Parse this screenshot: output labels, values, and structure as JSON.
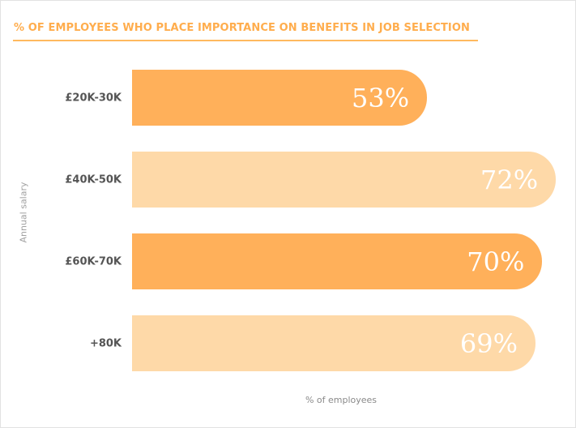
{
  "chart_data": {
    "type": "bar",
    "orientation": "horizontal",
    "title": "% OF EMPLOYEES WHO PLACE IMPORTANCE ON BENEFITS IN JOB SELECTION",
    "xlabel": "% of employees",
    "ylabel": "Annual salary",
    "categories": [
      "£20K-30K",
      "£40K-50K",
      "£60K-70K",
      "+80K"
    ],
    "values": [
      53,
      72,
      70,
      69
    ],
    "data_labels": [
      "53%",
      "72%",
      "70%",
      "69%"
    ],
    "colors": [
      "#ffb05a",
      "#fed9a8",
      "#ffb05a",
      "#fed9a8"
    ],
    "title_color": "#ffad4d",
    "grid": false,
    "legend": "none"
  }
}
